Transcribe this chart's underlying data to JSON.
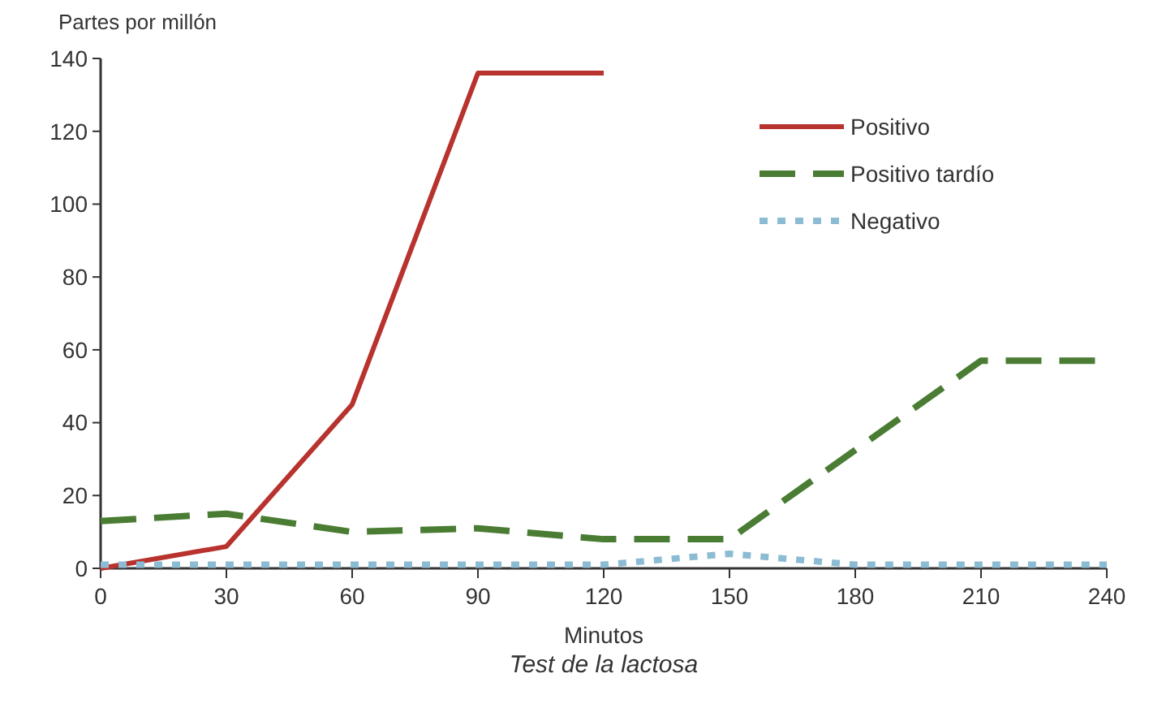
{
  "chart_data": {
    "type": "line",
    "xlabel": "Minutos",
    "ylabel": "Partes por millón",
    "annotations": [
      "Test de la lactosa"
    ],
    "series": [
      {
        "name": "Positivo",
        "color": "#b8322e",
        "line_style": "solid",
        "x": [
          0,
          30,
          60,
          90,
          120
        ],
        "values": [
          0,
          6,
          45,
          136,
          136
        ]
      },
      {
        "name": "Positivo tardío",
        "color": "#4a7d33",
        "line_style": "dashed",
        "x": [
          0,
          30,
          60,
          90,
          120,
          150,
          210,
          240
        ],
        "values": [
          13,
          15,
          10,
          11,
          8,
          8,
          57,
          57
        ]
      },
      {
        "name": "Negativo",
        "color": "#8cbcd4",
        "line_style": "dotted",
        "x": [
          0,
          30,
          60,
          90,
          120,
          150,
          180,
          210,
          240
        ],
        "values": [
          1,
          1,
          1,
          1,
          1,
          4,
          1,
          1,
          1
        ]
      }
    ],
    "xlim": [
      0,
      240
    ],
    "xticks": [
      0,
      30,
      60,
      90,
      120,
      150,
      180,
      210,
      240
    ],
    "ylim": [
      0,
      140
    ],
    "yticks": [
      0,
      20,
      40,
      60,
      80,
      100,
      120,
      140
    ],
    "legend": "top right",
    "grid": false
  }
}
